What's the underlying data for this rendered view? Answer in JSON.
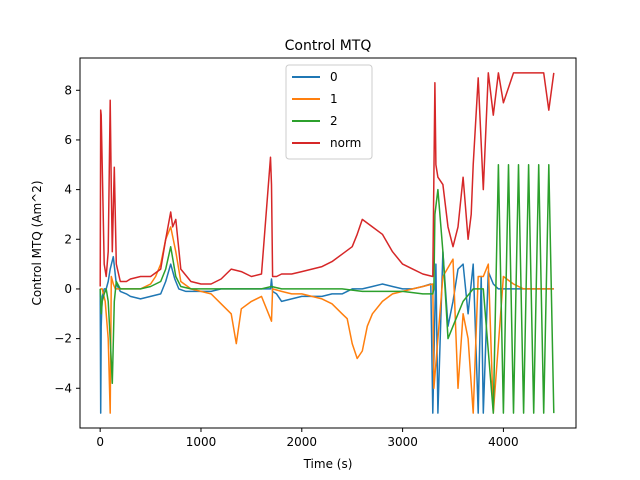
{
  "chart_data": {
    "type": "line",
    "title": "Control MTQ",
    "xlabel": "Time (s)",
    "ylabel": "Control MTQ (Am^2)",
    "xlim": [
      -200,
      4720
    ],
    "ylim": [
      -5.6,
      9.3
    ],
    "xticks": [
      0,
      1000,
      2000,
      3000,
      4000
    ],
    "yticks": [
      -4,
      -2,
      0,
      2,
      4,
      6,
      8
    ],
    "xtick_labels": [
      "0",
      "1000",
      "2000",
      "3000",
      "4000"
    ],
    "ytick_labels": [
      "−4",
      "−2",
      "0",
      "2",
      "4",
      "6",
      "8"
    ],
    "grid": false,
    "legend_position": "top-center",
    "series": [
      {
        "name": "0",
        "color": "#1f77b4",
        "x": [
          0,
          5,
          10,
          20,
          40,
          60,
          80,
          100,
          130,
          160,
          200,
          260,
          300,
          400,
          500,
          600,
          650,
          700,
          740,
          780,
          850,
          1000,
          1100,
          1200,
          1300,
          1400,
          1500,
          1600,
          1690,
          1700,
          1710,
          1750,
          1800,
          1900,
          2000,
          2100,
          2200,
          2300,
          2400,
          2500,
          2600,
          2700,
          2800,
          2900,
          3000,
          3100,
          3200,
          3280,
          3300,
          3330,
          3350,
          3400,
          3450,
          3500,
          3550,
          3600,
          3650,
          3700,
          3750,
          3780,
          3800,
          3850,
          3900,
          3950,
          4000,
          4100,
          4200,
          4300,
          4400,
          4500
        ],
        "values": [
          0,
          -5.0,
          -1.5,
          -0.3,
          0,
          0,
          0.3,
          0.8,
          1.3,
          0.2,
          -0.1,
          -0.2,
          -0.3,
          -0.4,
          -0.3,
          -0.2,
          0.3,
          1.0,
          0.4,
          0,
          -0.1,
          -0.1,
          -0.1,
          0,
          0,
          0,
          0,
          0,
          0,
          0.4,
          -0.1,
          -0.2,
          -0.5,
          -0.4,
          -0.3,
          -0.3,
          -0.3,
          -0.2,
          -0.2,
          0,
          0,
          0.1,
          0.2,
          0.1,
          0,
          0,
          0.1,
          0.2,
          -5.0,
          1.0,
          -5.0,
          1.5,
          -1.5,
          -0.5,
          0.8,
          1.0,
          -1.0,
          1.0,
          -5.0,
          0.5,
          -5.0,
          0.7,
          0.2,
          0,
          0,
          0,
          0,
          0,
          0,
          0
        ]
      },
      {
        "name": "1",
        "color": "#ff7f0e",
        "x": [
          0,
          10,
          20,
          50,
          80,
          100,
          110,
          130,
          150,
          200,
          300,
          400,
          500,
          550,
          600,
          650,
          700,
          750,
          800,
          900,
          1000,
          1100,
          1200,
          1300,
          1350,
          1400,
          1500,
          1600,
          1700,
          1710,
          1800,
          1900,
          2000,
          2100,
          2200,
          2300,
          2400,
          2450,
          2500,
          2550,
          2600,
          2650,
          2700,
          2800,
          2900,
          3000,
          3100,
          3200,
          3300,
          3310,
          3350,
          3400,
          3500,
          3550,
          3600,
          3650,
          3700,
          3750,
          3800,
          3850,
          3900,
          4000,
          4100,
          4200,
          4300,
          4400,
          4500
        ],
        "values": [
          0,
          0,
          0,
          -0.5,
          -2.0,
          -5.0,
          0.5,
          0.2,
          0,
          0,
          0,
          0,
          0.2,
          0.5,
          1.0,
          2.0,
          2.5,
          1.5,
          0.3,
          0,
          -0.1,
          -0.2,
          -0.6,
          -1.0,
          -2.2,
          -0.8,
          -0.5,
          -0.3,
          -1.3,
          0,
          -0.1,
          -0.2,
          -0.2,
          -0.3,
          -0.4,
          -0.6,
          -1.0,
          -1.2,
          -2.2,
          -2.8,
          -2.5,
          -1.5,
          -1.0,
          -0.5,
          -0.2,
          -0.1,
          0,
          0.1,
          0.2,
          -4.0,
          -2.0,
          0.5,
          1.2,
          -4.0,
          -1.0,
          -2.0,
          -5.0,
          0.5,
          0.5,
          1.0,
          -5.0,
          0.5,
          0.2,
          0,
          0,
          0,
          0
        ]
      },
      {
        "name": "2",
        "color": "#2ca02c",
        "x": [
          0,
          10,
          20,
          40,
          60,
          80,
          100,
          120,
          140,
          160,
          200,
          300,
          400,
          500,
          600,
          650,
          700,
          750,
          800,
          900,
          1000,
          1200,
          1400,
          1600,
          1700,
          1800,
          2000,
          2200,
          2400,
          2600,
          2800,
          3000,
          3200,
          3300,
          3310,
          3320,
          3350,
          3400,
          3450,
          3500,
          3600,
          3700,
          3800,
          3900,
          3950,
          4000,
          4050,
          4100,
          4150,
          4200,
          4250,
          4300,
          4350,
          4400,
          4450,
          4500
        ],
        "values": [
          0,
          -1.0,
          -0.5,
          -0.2,
          0,
          -0.5,
          -2.0,
          -3.8,
          -0.5,
          0.3,
          0,
          0,
          0,
          0.1,
          0.3,
          0.8,
          1.7,
          0.5,
          0.1,
          0,
          0,
          0,
          0,
          0,
          0.1,
          0,
          0,
          0,
          0,
          -0.1,
          -0.1,
          -0.1,
          -0.2,
          -0.2,
          0,
          3.0,
          4.0,
          1.5,
          -2.0,
          -1.5,
          -0.5,
          0,
          0,
          -5.0,
          5.0,
          -5.0,
          5.0,
          -5.0,
          5.0,
          -5.0,
          5.0,
          -5.0,
          5.0,
          -5.0,
          5.0,
          -5.0
        ]
      },
      {
        "name": "norm",
        "color": "#d62728",
        "x": [
          0,
          5,
          10,
          20,
          40,
          60,
          80,
          100,
          110,
          120,
          140,
          160,
          200,
          260,
          300,
          400,
          500,
          600,
          650,
          700,
          720,
          750,
          800,
          900,
          1000,
          1100,
          1200,
          1300,
          1400,
          1500,
          1600,
          1690,
          1700,
          1710,
          1750,
          1800,
          1900,
          2000,
          2100,
          2200,
          2300,
          2400,
          2500,
          2550,
          2600,
          2700,
          2800,
          2900,
          3000,
          3100,
          3200,
          3300,
          3320,
          3330,
          3350,
          3400,
          3450,
          3500,
          3550,
          3600,
          3650,
          3680,
          3700,
          3750,
          3800,
          3850,
          3900,
          3950,
          4000,
          4100,
          4200,
          4300,
          4400,
          4450,
          4500
        ],
        "values": [
          0.1,
          7.2,
          7.0,
          5.0,
          1.0,
          0.5,
          1.5,
          7.6,
          4.0,
          1.5,
          4.9,
          1.0,
          0.3,
          0.3,
          0.4,
          0.5,
          0.5,
          0.8,
          2.0,
          3.1,
          2.5,
          2.8,
          0.8,
          0.3,
          0.2,
          0.2,
          0.4,
          0.8,
          0.7,
          0.5,
          0.6,
          5.3,
          4.2,
          0.5,
          0.5,
          0.6,
          0.6,
          0.7,
          0.8,
          0.9,
          1.1,
          1.4,
          1.7,
          2.2,
          2.8,
          2.5,
          2.2,
          1.5,
          1.0,
          0.8,
          0.6,
          0.5,
          8.3,
          5.0,
          4.5,
          4.2,
          2.5,
          1.7,
          2.5,
          4.5,
          2.0,
          3.0,
          5.0,
          8.5,
          4.0,
          8.7,
          7.0,
          8.7,
          7.5,
          8.7,
          8.7,
          8.7,
          8.7,
          7.2,
          8.7
        ]
      }
    ]
  }
}
